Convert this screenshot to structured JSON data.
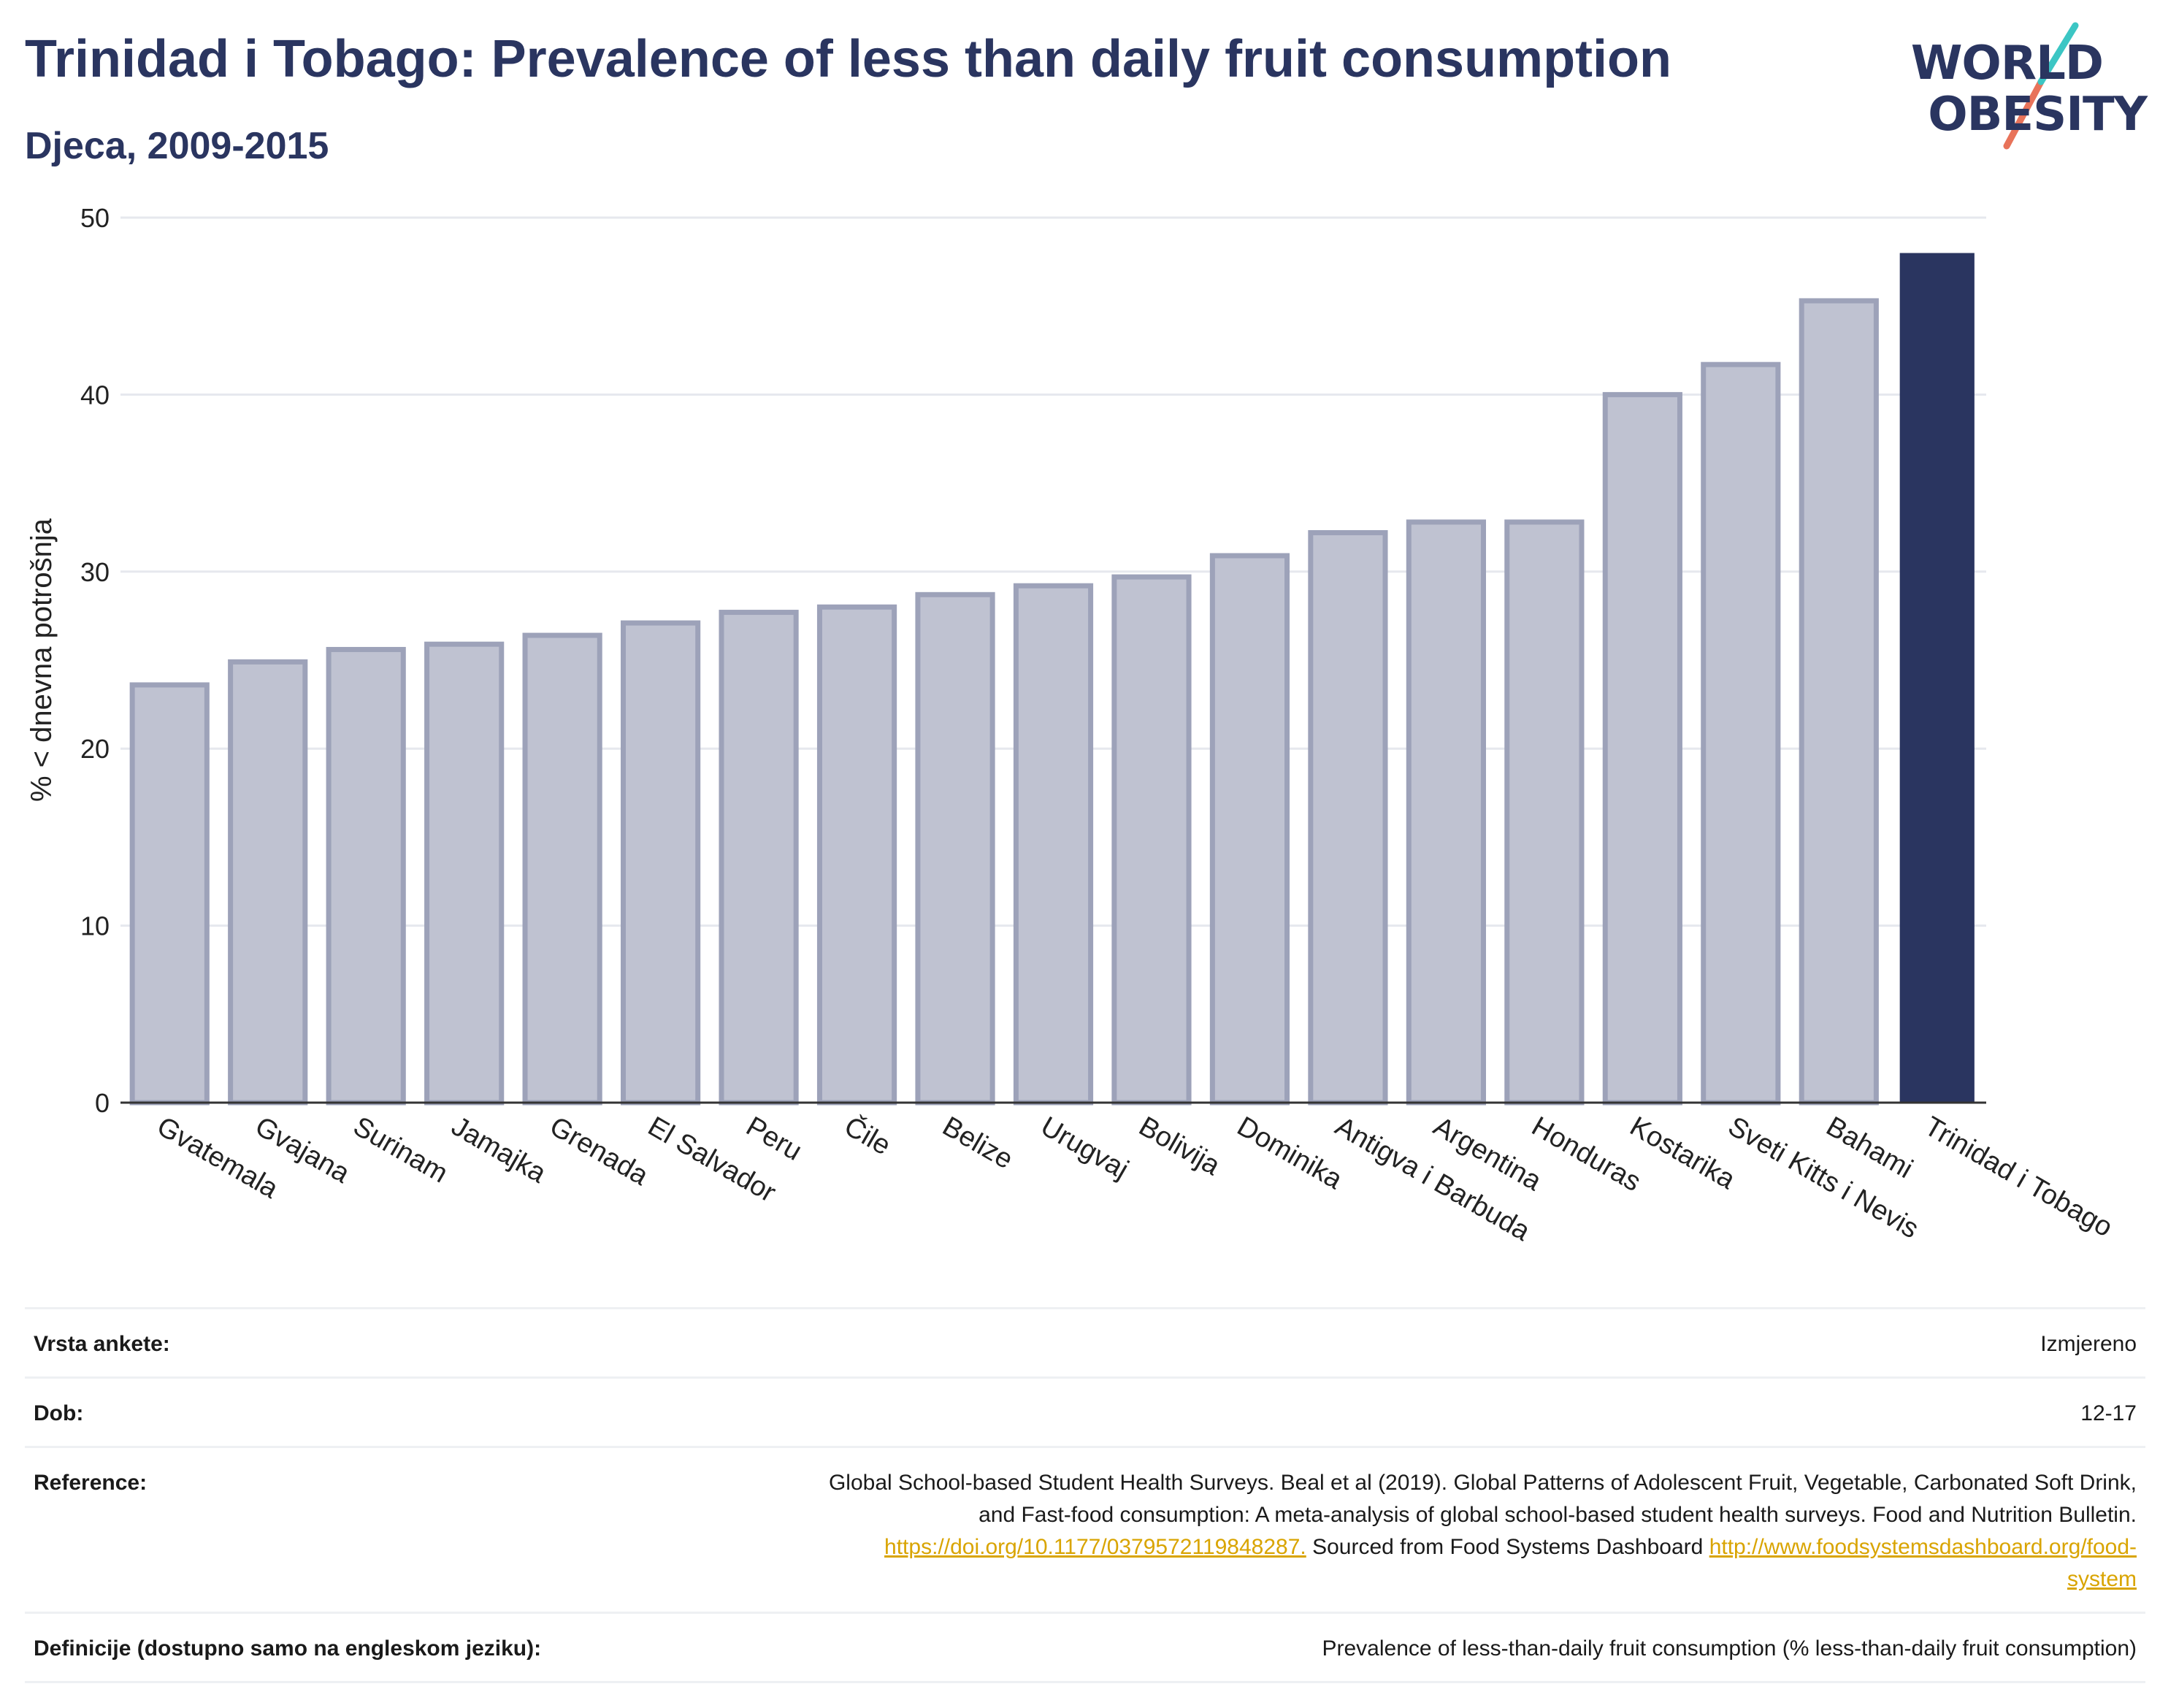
{
  "header": {
    "title": "Trinidad i Tobago: Prevalence of less than daily fruit consumption",
    "subtitle": "Djeca, 2009-2015"
  },
  "logo": {
    "line1": "WORLD",
    "line2": "OBESITY",
    "text_color": "#2a3560",
    "slash_colors": [
      "#3cc6c4",
      "#e8735a"
    ]
  },
  "chart_data": {
    "type": "bar",
    "categories": [
      "Gvatemala",
      "Gvajana",
      "Surinam",
      "Jamajka",
      "Grenada",
      "El Salvador",
      "Peru",
      "Čile",
      "Belize",
      "Urugvaj",
      "Bolivija",
      "Dominika",
      "Antigva i Barbuda",
      "Argentina",
      "Honduras",
      "Kostarika",
      "Sveti Kitts i Nevis",
      "Bahami",
      "Trinidad i Tobago"
    ],
    "values": [
      23.6,
      24.9,
      25.6,
      25.9,
      26.4,
      27.1,
      27.7,
      28.0,
      28.7,
      29.2,
      29.7,
      30.9,
      32.2,
      32.8,
      32.8,
      40.0,
      41.7,
      45.3,
      48.0
    ],
    "highlight": "Trinidad i Tobago",
    "ylabel": "% < dnevna potrošnja",
    "xlabel": "",
    "ylim": [
      0,
      50
    ],
    "yticks": [
      0,
      10,
      20,
      30,
      40,
      50
    ],
    "grid": true,
    "colors": {
      "bar": "#bfc2d1",
      "bar_border": "#9da2b9",
      "highlight": "#2a3560",
      "grid": "#e6e8ee",
      "axis": "#333333"
    }
  },
  "info": {
    "survey_type": {
      "label": "Vrsta ankete:",
      "value": "Izmjereno"
    },
    "age": {
      "label": "Dob:",
      "value": "12-17"
    },
    "reference": {
      "label": "Reference:",
      "line1": "Global School-based Student Health Surveys. Beal et al (2019). Global Patterns of Adolescent Fruit, Vegetable, Carbonated Soft Drink,",
      "line2": "and Fast-food consumption: A meta-analysis of global school-based student health surveys. Food and Nutrition Bulletin.",
      "link1": "https://doi.org/10.1177/0379572119848287.",
      "mid": " Sourced from Food Systems Dashboard ",
      "link2a": "http://www.foodsystemsdashboard.org/food-",
      "link2b": "system"
    },
    "definitions": {
      "label": "Definicije (dostupno samo na engleskom jeziku):",
      "value": "Prevalence of less-than-daily fruit consumption (% less-than-daily fruit consumption)"
    }
  }
}
